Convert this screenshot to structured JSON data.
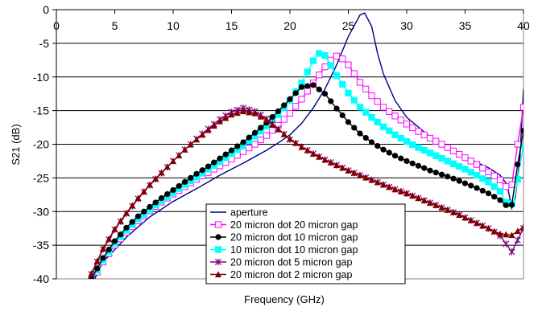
{
  "chart_data": {
    "type": "line",
    "xlabel": "Frequency (GHz)",
    "ylabel": "S21 (dB)",
    "xlim": [
      0,
      40
    ],
    "ylim": [
      -40,
      0
    ],
    "xticks": [
      "0",
      "5",
      "10",
      "15",
      "20",
      "25",
      "30",
      "35",
      "40"
    ],
    "yticks": [
      "0",
      "-5",
      "-10",
      "-15",
      "-20",
      "-25",
      "-30",
      "-35",
      "-40"
    ],
    "grid": "horizontal",
    "legend_position": "bottom-center",
    "series": [
      {
        "name": "aperture",
        "color": "#000080",
        "marker": "none",
        "points": [
          [
            2.6,
            -42.5
          ],
          [
            3,
            -41
          ],
          [
            4,
            -37.5
          ],
          [
            6,
            -33.8
          ],
          [
            8,
            -30.8
          ],
          [
            10,
            -28.5
          ],
          [
            12,
            -26.6
          ],
          [
            14,
            -24.6
          ],
          [
            16,
            -22.8
          ],
          [
            18,
            -20.9
          ],
          [
            19,
            -19.8
          ],
          [
            20,
            -18.6
          ],
          [
            21,
            -16.9
          ],
          [
            22,
            -14.6
          ],
          [
            23,
            -11.8
          ],
          [
            24,
            -8.2
          ],
          [
            25,
            -4
          ],
          [
            26,
            -0.8
          ],
          [
            26.4,
            -0.5
          ],
          [
            27,
            -2.5
          ],
          [
            27.5,
            -6.5
          ],
          [
            28,
            -9.5
          ],
          [
            29,
            -13.5
          ],
          [
            30,
            -16
          ],
          [
            32,
            -18.9
          ],
          [
            34,
            -20.9
          ],
          [
            36,
            -22.7
          ],
          [
            37,
            -23.5
          ],
          [
            38,
            -24.6
          ],
          [
            38.6,
            -26
          ],
          [
            39,
            -29.5
          ],
          [
            39.3,
            -28
          ],
          [
            39.7,
            -22
          ],
          [
            40,
            -11.8
          ]
        ]
      },
      {
        "name": "20 micron dot 20 micron gap",
        "color": "#FF00FF",
        "marker": "square-open",
        "points": [
          [
            2.6,
            -41.5
          ],
          [
            3,
            -40.5
          ],
          [
            4,
            -37.5
          ],
          [
            5,
            -35
          ],
          [
            6,
            -33.1
          ],
          [
            7,
            -31.4
          ],
          [
            8,
            -29.9
          ],
          [
            9,
            -28.6
          ],
          [
            10,
            -27.4
          ],
          [
            11,
            -26.3
          ],
          [
            12,
            -25.2
          ],
          [
            13,
            -24.2
          ],
          [
            14,
            -23.2
          ],
          [
            15,
            -22.2
          ],
          [
            16,
            -21.1
          ],
          [
            17,
            -20
          ],
          [
            18,
            -18.7
          ],
          [
            19,
            -17.2
          ],
          [
            20,
            -15.4
          ],
          [
            21,
            -13.3
          ],
          [
            22,
            -10.9
          ],
          [
            23,
            -8.5
          ],
          [
            23.6,
            -7.3
          ],
          [
            24,
            -6.9
          ],
          [
            24.6,
            -7.4
          ],
          [
            25,
            -8.2
          ],
          [
            26,
            -10.8
          ],
          [
            27,
            -12.8
          ],
          [
            28,
            -14.5
          ],
          [
            29,
            -15.8
          ],
          [
            30,
            -17
          ],
          [
            31,
            -18.1
          ],
          [
            32,
            -19.1
          ],
          [
            33,
            -20
          ],
          [
            34,
            -21
          ],
          [
            35,
            -22
          ],
          [
            36,
            -23
          ],
          [
            37,
            -24.1
          ],
          [
            38,
            -25.3
          ],
          [
            38.6,
            -26.5
          ],
          [
            39,
            -26
          ],
          [
            39.5,
            -20
          ],
          [
            40,
            -14.5
          ]
        ]
      },
      {
        "name": "20 micron dot 10 micron gap",
        "color": "#000000",
        "marker": "circle-filled",
        "points": [
          [
            2.6,
            -41
          ],
          [
            3,
            -40
          ],
          [
            4,
            -36.9
          ],
          [
            5,
            -34.4
          ],
          [
            6,
            -32.4
          ],
          [
            7,
            -30.7
          ],
          [
            8,
            -29.3
          ],
          [
            9,
            -28
          ],
          [
            10,
            -26.8
          ],
          [
            11,
            -25.6
          ],
          [
            12,
            -24.4
          ],
          [
            13,
            -23.3
          ],
          [
            14,
            -22.1
          ],
          [
            15,
            -20.9
          ],
          [
            16,
            -19.7
          ],
          [
            17,
            -18.3
          ],
          [
            18,
            -16.8
          ],
          [
            19,
            -15.1
          ],
          [
            20,
            -13.3
          ],
          [
            21,
            -11.5
          ],
          [
            22,
            -11.2
          ],
          [
            23,
            -12.5
          ],
          [
            24,
            -14.7
          ],
          [
            25,
            -16.7
          ],
          [
            26,
            -18.4
          ],
          [
            27,
            -19.7
          ],
          [
            28,
            -20.8
          ],
          [
            29,
            -21.7
          ],
          [
            30,
            -22.5
          ],
          [
            31,
            -23.2
          ],
          [
            32,
            -23.9
          ],
          [
            33,
            -24.5
          ],
          [
            34,
            -25.1
          ],
          [
            35,
            -25.8
          ],
          [
            36,
            -26.5
          ],
          [
            37,
            -27.3
          ],
          [
            38,
            -28.3
          ],
          [
            38.6,
            -29.2
          ],
          [
            39,
            -29
          ],
          [
            39.5,
            -23
          ],
          [
            40,
            -18
          ]
        ]
      },
      {
        "name": "10 micron dot 10 micron gap",
        "color": "#00FFFF",
        "marker": "square-filled",
        "points": [
          [
            2.6,
            -41.2
          ],
          [
            3,
            -40.2
          ],
          [
            4,
            -37.2
          ],
          [
            5,
            -34.7
          ],
          [
            6,
            -32.8
          ],
          [
            7,
            -31.1
          ],
          [
            8,
            -29.7
          ],
          [
            9,
            -28.4
          ],
          [
            10,
            -27.2
          ],
          [
            11,
            -26
          ],
          [
            12,
            -24.9
          ],
          [
            13,
            -23.7
          ],
          [
            14,
            -22.6
          ],
          [
            15,
            -21.4
          ],
          [
            16,
            -20.2
          ],
          [
            17,
            -18.8
          ],
          [
            18,
            -17.3
          ],
          [
            19,
            -15.6
          ],
          [
            20,
            -13.5
          ],
          [
            21,
            -10.9
          ],
          [
            22,
            -7.6
          ],
          [
            22.5,
            -6.5
          ],
          [
            23,
            -6.8
          ],
          [
            24,
            -9.8
          ],
          [
            25,
            -12.4
          ],
          [
            26,
            -14.5
          ],
          [
            27,
            -16
          ],
          [
            28,
            -17.4
          ],
          [
            29,
            -18.6
          ],
          [
            30,
            -19.6
          ],
          [
            31,
            -20.5
          ],
          [
            32,
            -21.3
          ],
          [
            33,
            -22.1
          ],
          [
            34,
            -22.9
          ],
          [
            35,
            -23.7
          ],
          [
            36,
            -24.6
          ],
          [
            37,
            -25.6
          ],
          [
            38,
            -27
          ],
          [
            38.7,
            -29.3
          ],
          [
            39.2,
            -28.5
          ],
          [
            39.7,
            -23
          ],
          [
            40,
            -20.3
          ]
        ]
      },
      {
        "name": "20 micron dot 5 micron gap",
        "color": "#800080",
        "marker": "star",
        "points": [
          [
            2.6,
            -40.5
          ],
          [
            3,
            -39.3
          ],
          [
            4,
            -35.6
          ],
          [
            5,
            -32.7
          ],
          [
            6,
            -30.3
          ],
          [
            7,
            -28.1
          ],
          [
            8,
            -26.1
          ],
          [
            9,
            -24.3
          ],
          [
            10,
            -22.5
          ],
          [
            11,
            -20.8
          ],
          [
            12,
            -19.2
          ],
          [
            13,
            -17.7
          ],
          [
            14,
            -16.3
          ],
          [
            15,
            -15.2
          ],
          [
            16,
            -14.6
          ],
          [
            17,
            -15.1
          ],
          [
            18,
            -16.2
          ],
          [
            19,
            -17.7
          ],
          [
            20,
            -19.3
          ],
          [
            21,
            -20.4
          ],
          [
            22,
            -21.4
          ],
          [
            23,
            -22.3
          ],
          [
            24,
            -23.1
          ],
          [
            25,
            -23.9
          ],
          [
            26,
            -24.6
          ],
          [
            27,
            -25.3
          ],
          [
            28,
            -26
          ],
          [
            29,
            -26.7
          ],
          [
            30,
            -27.3
          ],
          [
            31,
            -28
          ],
          [
            32,
            -28.7
          ],
          [
            33,
            -29.4
          ],
          [
            34,
            -30.1
          ],
          [
            35,
            -30.9
          ],
          [
            36,
            -31.7
          ],
          [
            37,
            -32.5
          ],
          [
            38,
            -33.6
          ],
          [
            39,
            -36
          ],
          [
            40,
            -32.5
          ]
        ]
      },
      {
        "name": "20 micron dot 2 micron gap",
        "color": "#800000",
        "marker": "triangle-filled",
        "points": [
          [
            2.6,
            -40.5
          ],
          [
            3,
            -39.2
          ],
          [
            4,
            -35.5
          ],
          [
            5,
            -32.6
          ],
          [
            6,
            -30.2
          ],
          [
            7,
            -28
          ],
          [
            8,
            -26
          ],
          [
            9,
            -24.2
          ],
          [
            10,
            -22.5
          ],
          [
            11,
            -20.8
          ],
          [
            12,
            -19.3
          ],
          [
            13,
            -17.9
          ],
          [
            14,
            -16.6
          ],
          [
            15,
            -15.6
          ],
          [
            16,
            -15.1
          ],
          [
            17,
            -15.4
          ],
          [
            18,
            -16.4
          ],
          [
            19,
            -17.8
          ],
          [
            20,
            -19.2
          ],
          [
            21,
            -20.4
          ],
          [
            22,
            -21.4
          ],
          [
            23,
            -22.3
          ],
          [
            24,
            -23.1
          ],
          [
            25,
            -23.9
          ],
          [
            26,
            -24.6
          ],
          [
            27,
            -25.3
          ],
          [
            28,
            -26
          ],
          [
            29,
            -26.7
          ],
          [
            30,
            -27.3
          ],
          [
            31,
            -28
          ],
          [
            32,
            -28.7
          ],
          [
            33,
            -29.4
          ],
          [
            34,
            -30.1
          ],
          [
            35,
            -30.9
          ],
          [
            36,
            -31.7
          ],
          [
            37,
            -32.5
          ],
          [
            38,
            -33.3
          ],
          [
            39,
            -33.5
          ],
          [
            40,
            -32.3
          ]
        ]
      }
    ]
  }
}
